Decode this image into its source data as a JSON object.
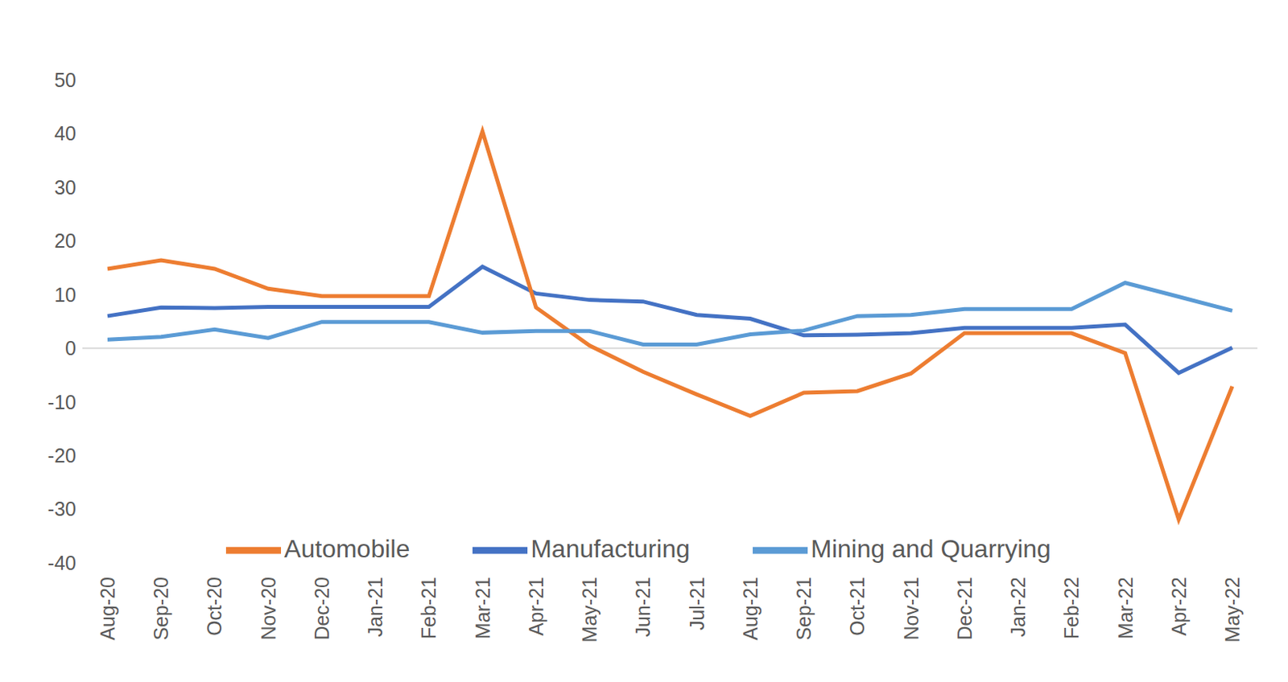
{
  "chart_data": {
    "type": "line",
    "categories": [
      "Aug-20",
      "Sep-20",
      "Oct-20",
      "Nov-20",
      "Dec-20",
      "Jan-21",
      "Feb-21",
      "Mar-21",
      "Apr-21",
      "May-21",
      "Jun-21",
      "Jul-21",
      "Aug-21",
      "Sep-21",
      "Oct-21",
      "Nov-21",
      "Dec-21",
      "Jan-22",
      "Feb-22",
      "Mar-22",
      "Apr-22",
      "May-22"
    ],
    "series": [
      {
        "name": "Manufacturing",
        "color": "#4472c4",
        "values": [
          6.0,
          7.6,
          7.5,
          7.7,
          7.7,
          7.7,
          7.7,
          15.2,
          10.2,
          9.0,
          8.7,
          6.2,
          5.5,
          2.4,
          2.5,
          2.8,
          3.8,
          3.8,
          3.8,
          4.4,
          -4.6,
          0.1
        ]
      },
      {
        "name": "Automobile",
        "color": "#ed7d31",
        "values": [
          14.8,
          16.4,
          14.8,
          11.1,
          9.7,
          9.7,
          9.7,
          40.4,
          7.6,
          0.5,
          -4.4,
          -8.6,
          -12.6,
          -8.3,
          -8.0,
          -4.7,
          2.8,
          2.8,
          2.8,
          -0.9,
          -31.9,
          -7.1
        ]
      },
      {
        "name": "Mining and Quarrying",
        "color": "#5b9bd5",
        "values": [
          1.6,
          2.1,
          3.5,
          1.9,
          4.9,
          4.9,
          4.9,
          2.9,
          3.2,
          3.2,
          0.7,
          0.7,
          2.6,
          3.3,
          6.0,
          6.2,
          7.3,
          7.3,
          7.3,
          12.2,
          9.6,
          7.0
        ]
      }
    ],
    "ylim": [
      -40,
      50
    ],
    "yticks": [
      -40,
      -30,
      -20,
      -10,
      0,
      10,
      20,
      30,
      40,
      50
    ],
    "grid": false,
    "legend": "bottom"
  }
}
